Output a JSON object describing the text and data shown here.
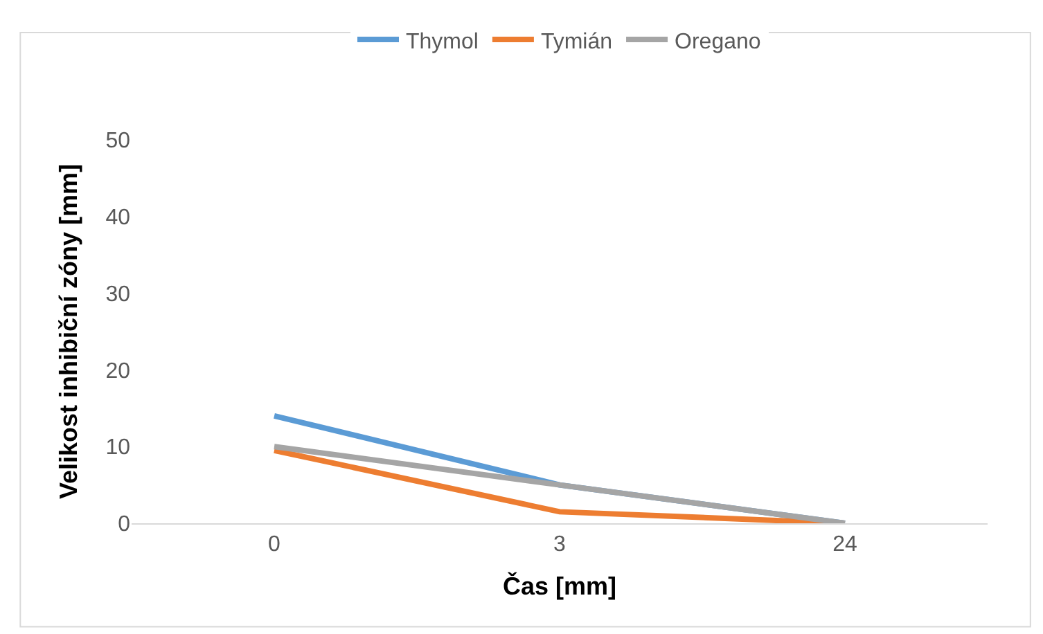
{
  "chart_data": {
    "type": "line",
    "xlabel": "Čas [mm]",
    "ylabel": "Velikost inhibiční zóny [mm]",
    "categories": [
      "0",
      "3",
      "24"
    ],
    "series": [
      {
        "name": "Thymol",
        "color": "#5b9bd5",
        "values": [
          14,
          5,
          0
        ]
      },
      {
        "name": "Tymián",
        "color": "#ed7d31",
        "values": [
          9.5,
          1.5,
          0
        ]
      },
      {
        "name": "Oregano",
        "color": "#a5a5a5",
        "values": [
          10,
          5,
          0
        ]
      }
    ],
    "ylim": [
      0,
      50
    ],
    "yticks": [
      0,
      10,
      20,
      30,
      40,
      50
    ],
    "grid": false,
    "legend": "top",
    "marker": "none",
    "line_style": "solid"
  }
}
